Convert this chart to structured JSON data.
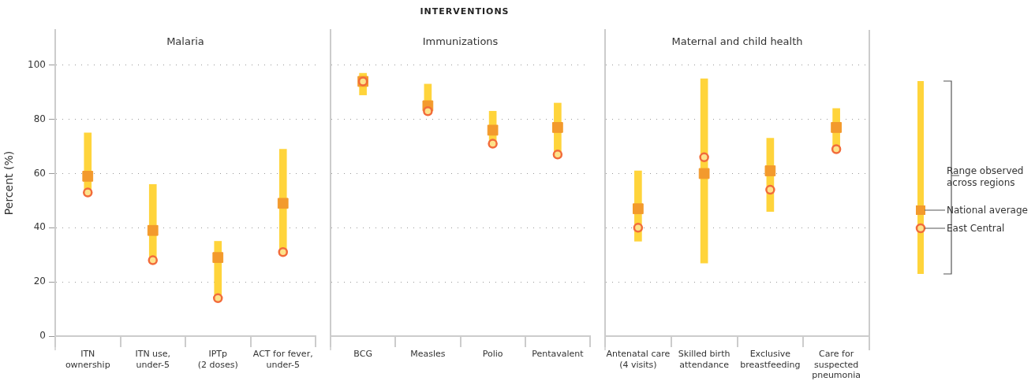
{
  "chart_data": [
    {
      "type": "bar",
      "title": "Malaria",
      "ylabel": "Percent (%)",
      "categories": [
        "ITN\nownership",
        "ITN use,\nunder-5",
        "IPTp\n(2 doses)",
        "ACT for fever,\nunder-5"
      ],
      "ylim": [
        0,
        113
      ],
      "yticks": [
        0,
        20,
        40,
        60,
        80,
        100
      ],
      "grid": "y",
      "series": [
        {
          "type": "bar",
          "color": "#ffd43b",
          "base": [
            53,
            28,
            14,
            31
          ],
          "values": [
            22,
            28,
            21,
            38
          ]
        },
        {
          "type": "scatter",
          "color": "#f39a2d",
          "marker": "square",
          "x": [
            "ITN\nownership",
            "ITN use,\nunder-5",
            "IPTp\n(2 doses)",
            "ACT for fever,\nunder-5"
          ],
          "values": [
            59,
            39,
            29,
            49
          ]
        },
        {
          "type": "scatter",
          "color": "#f26b3a",
          "marker": "circle",
          "x": [
            "ITN\nownership",
            "ITN use,\nunder-5",
            "IPTp\n(2 doses)",
            "ACT for fever,\nunder-5"
          ],
          "values": [
            53,
            28,
            14,
            31
          ]
        }
      ]
    },
    {
      "type": "bar",
      "title": "Immunizations",
      "xlabel": "INTERVENTIONS",
      "categories": [
        "BCG",
        "Measles",
        "Polio",
        "Pentavalent"
      ],
      "ylim": [
        0,
        113
      ],
      "yticks": [
        0,
        20,
        40,
        60,
        80,
        100
      ],
      "tick_labels": "x",
      "grid": "y",
      "series": [
        {
          "type": "bar",
          "color": "#ffd43b",
          "base": [
            89,
            83,
            71,
            67
          ],
          "values": [
            8,
            10,
            12,
            19
          ]
        },
        {
          "type": "scatter",
          "color": "#f39a2d",
          "marker": "square",
          "x": [
            "BCG",
            "Measles",
            "Polio",
            "Pentavalent"
          ],
          "values": [
            94,
            85,
            76,
            77
          ]
        },
        {
          "type": "scatter",
          "color": "#f26b3a",
          "marker": "circle",
          "x": [
            "BCG",
            "Measles",
            "Polio",
            "Pentavalent"
          ],
          "values": [
            94,
            83,
            71,
            67
          ]
        }
      ]
    },
    {
      "type": "bar",
      "title": "Maternal and child health",
      "categories": [
        "Antenatal care\n(4 visits)",
        "Skilled birth\nattendance",
        "Exclusive\nbreastfeeding",
        "Care for\nsuspected\npneumonia"
      ],
      "ylim": [
        0,
        113
      ],
      "yticks": [
        0,
        20,
        40,
        60,
        80,
        100
      ],
      "tick_labels": "x",
      "grid": "y",
      "legend": "right",
      "series": [
        {
          "type": "bar",
          "name": "Range observed\nacross regions",
          "color": "#ffd43b",
          "base": [
            35,
            27,
            46,
            69
          ],
          "values": [
            26,
            68,
            27,
            15
          ]
        },
        {
          "type": "scatter",
          "name": "National average",
          "color": "#f39a2d",
          "marker": "square",
          "x": [
            "Antenatal care\n(4 visits)",
            "Skilled birth\nattendance",
            "Exclusive\nbreastfeeding",
            "Care for\nsuspected\npneumonia"
          ],
          "values": [
            47,
            60,
            61,
            77
          ]
        },
        {
          "type": "scatter",
          "name": "East Central",
          "color": "#f26b3a",
          "marker": "circle",
          "x": [
            "Antenatal care\n(4 visits)",
            "Skilled birth\nattendance",
            "Exclusive\nbreastfeeding",
            "Care for\nsuspected\npneumonia"
          ],
          "values": [
            40,
            66,
            54,
            69
          ]
        }
      ]
    }
  ]
}
